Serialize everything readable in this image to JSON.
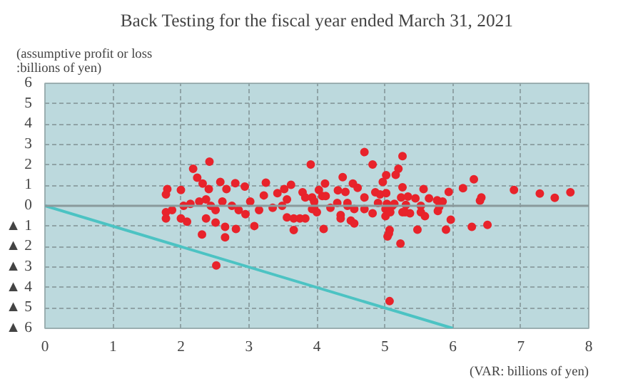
{
  "chart_data": {
    "type": "scatter",
    "title": "Back Testing for the fiscal year ended March 31, 2021",
    "ylabel": "(assumptive profit or loss\n:billions of yen)",
    "xlabel": "(VAR: billions of yen)",
    "xlim": [
      0,
      8
    ],
    "xticks": [
      0,
      1,
      2,
      3,
      4,
      5,
      6,
      7,
      8
    ],
    "ylim": [
      -6,
      6
    ],
    "yticks": [
      {
        "value": -6,
        "label": "▲ 6"
      },
      {
        "value": -5,
        "label": "▲ 5"
      },
      {
        "value": -4,
        "label": "▲ 4"
      },
      {
        "value": -3,
        "label": "▲ 3"
      },
      {
        "value": -2,
        "label": "▲ 2"
      },
      {
        "value": -1,
        "label": "▲ 1"
      },
      0,
      1,
      2,
      3,
      4,
      5,
      6
    ],
    "grid": true,
    "ref_lines": [
      {
        "axis": "y",
        "value": 0,
        "color": "#8a9a9c"
      }
    ],
    "series": [
      {
        "marker": "circle",
        "color": "#e8232b",
        "x": [
          2.42,
          2.18,
          2.24,
          2.32,
          1.8,
          1.78,
          2.0,
          2.41,
          2.58,
          2.8,
          2.94,
          2.67,
          1.78,
          1.78,
          1.87,
          2.0,
          2.09,
          2.04,
          2.14,
          2.27,
          2.37,
          2.44,
          2.51,
          2.37,
          2.51,
          2.65,
          2.81,
          3.08,
          2.65,
          2.31,
          2.61,
          2.75,
          2.85,
          2.95,
          3.02,
          3.15,
          3.22,
          3.25,
          3.42,
          3.52,
          3.62,
          3.56,
          3.35,
          3.49,
          3.66,
          3.56,
          3.75,
          3.83,
          3.66,
          3.79,
          3.83,
          3.91,
          3.93,
          3.96,
          4.7,
          5.26,
          4.82,
          5.2,
          5.16,
          5.02,
          4.38,
          4.97,
          4.12,
          4.53,
          4.6,
          5.26,
          5.57,
          6.15,
          5.94,
          4.03,
          4.31,
          4.42,
          4.08,
          4.13,
          4.86,
          4.93,
          5.02,
          4.7,
          5.24,
          5.34,
          5.45,
          5.65,
          5.77,
          5.85,
          3.96,
          4.3,
          4.45,
          4.9,
          5.03,
          5.14,
          5.31,
          5.53,
          5.8,
          3.93,
          4.2,
          4.55,
          4.7,
          4.82,
          5.01,
          5.11,
          5.26,
          5.53,
          5.78,
          4.0,
          4.35,
          4.45,
          4.35,
          4.5,
          4.55,
          5.01,
          5.08,
          5.3,
          5.37,
          5.59,
          5.97,
          5.48,
          5.9,
          5.07,
          5.06,
          5.04,
          5.23,
          4.1,
          6.31,
          6.42,
          6.4,
          6.9,
          7.28,
          7.5,
          7.73,
          6.28,
          6.51,
          2.52,
          5.07
        ],
        "values": [
          2.16,
          1.81,
          1.38,
          1.09,
          0.82,
          0.56,
          0.78,
          0.82,
          1.17,
          1.11,
          0.94,
          0.82,
          -0.31,
          -0.62,
          -0.21,
          -0.62,
          -0.78,
          0,
          0.1,
          0.21,
          0.31,
          0,
          -0.21,
          -0.62,
          -0.82,
          -1.03,
          -1.13,
          -0.99,
          -1.54,
          -1.4,
          0.21,
          0,
          -0.21,
          -0.41,
          0.21,
          -0.21,
          0.51,
          1.13,
          0.62,
          0.82,
          1.03,
          0.31,
          -0.1,
          0,
          -0.62,
          -0.57,
          -0.62,
          -0.62,
          -1.19,
          0.66,
          0.41,
          2.02,
          0.41,
          -0.1,
          2.63,
          2.43,
          2.02,
          1.81,
          1.52,
          1.5,
          1.4,
          1.17,
          1.09,
          1.09,
          0.88,
          0.91,
          0.82,
          0.86,
          0.68,
          0.78,
          0.76,
          0.68,
          0.48,
          0.48,
          0.66,
          0.56,
          0.62,
          0.41,
          0.41,
          0.45,
          0.37,
          0.37,
          0.27,
          0.21,
          0.21,
          0.14,
          0.14,
          0.14,
          0.1,
          0.1,
          0.04,
          0,
          -0.04,
          -0.16,
          -0.1,
          -0.16,
          -0.16,
          -0.37,
          -0.16,
          0,
          -0.31,
          -0.31,
          -0.25,
          -0.31,
          -0.45,
          0,
          -0.62,
          -0.72,
          -0.86,
          -0.51,
          -0.31,
          -0.31,
          -0.37,
          -0.51,
          -0.68,
          -1.17,
          -1.17,
          -1.19,
          -1.36,
          -1.5,
          -1.85,
          -1.13,
          1.3,
          0.41,
          0.25,
          0.78,
          0.6,
          0.39,
          0.66,
          -1.03,
          -0.93,
          -2.92,
          -4.67
        ]
      },
      {
        "type": "line",
        "color": "#4cc3c3",
        "x": [
          0,
          6
        ],
        "values": [
          0,
          -6
        ]
      }
    ]
  }
}
